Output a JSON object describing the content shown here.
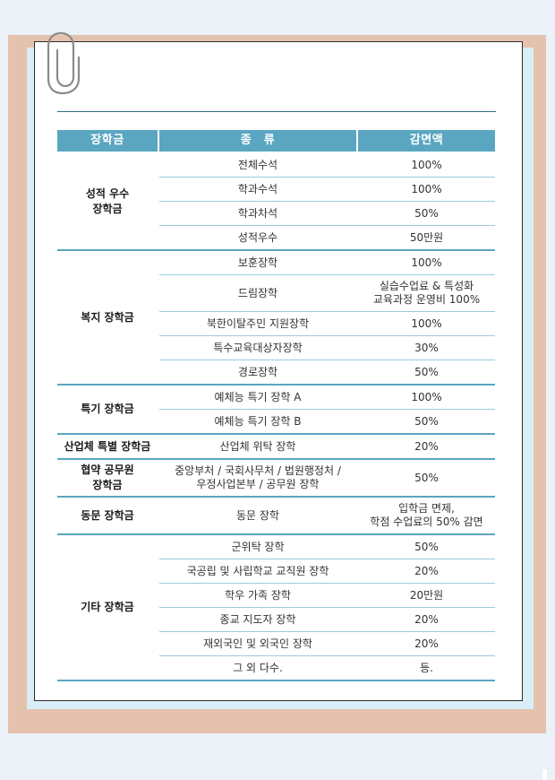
{
  "table": {
    "headers": {
      "category": "장학금",
      "type": "종　류",
      "amount": "감면액"
    },
    "groups": [
      {
        "name": "성적 우수\n장학금",
        "rows": [
          {
            "type": "전체수석",
            "amount": "100%"
          },
          {
            "type": "학과수석",
            "amount": "100%"
          },
          {
            "type": "학과차석",
            "amount": "50%"
          },
          {
            "type": "성적우수",
            "amount": "50만원"
          }
        ]
      },
      {
        "name": "복지 장학금",
        "rows": [
          {
            "type": "보훈장학",
            "amount": "100%"
          },
          {
            "type": "드림장학",
            "amount": "실습수업료 & 특성화\n교육과정 운영비  100%"
          },
          {
            "type": "북한이탈주민 지원장학",
            "amount": "100%"
          },
          {
            "type": "특수교육대상자장학",
            "amount": "30%"
          },
          {
            "type": "경로장학",
            "amount": "50%"
          }
        ]
      },
      {
        "name": "특기 장학금",
        "rows": [
          {
            "type": "예체능 특기 장학 A",
            "amount": "100%"
          },
          {
            "type": "예체능 특기 장학 B",
            "amount": "50%"
          }
        ]
      },
      {
        "name": "산업체 특별 장학금",
        "rows": [
          {
            "type": "산업체 위탁 장학",
            "amount": "20%"
          }
        ]
      },
      {
        "name": "협약 공무원\n장학금",
        "rows": [
          {
            "type": "중앙부처 / 국회사무처 / 법원행정처 /\n우정사업본부 / 공무원 장학",
            "amount": "50%"
          }
        ]
      },
      {
        "name": "동문 장학금",
        "rows": [
          {
            "type": "동문 장학",
            "amount": "입학금 면제,\n학점 수업료의 50% 감면"
          }
        ]
      },
      {
        "name": "기타 장학금",
        "rows": [
          {
            "type": "군위탁 장학",
            "amount": "50%"
          },
          {
            "type": "국공립 및 사립학교 교직원 장학",
            "amount": "20%"
          },
          {
            "type": "학우 가족 장학",
            "amount": "20만원"
          },
          {
            "type": "종교 지도자 장학",
            "amount": "20%"
          },
          {
            "type": "재외국인 및 외국인 장학",
            "amount": "20%"
          },
          {
            "type": "그 외 다수.",
            "amount": "등."
          }
        ]
      }
    ]
  }
}
